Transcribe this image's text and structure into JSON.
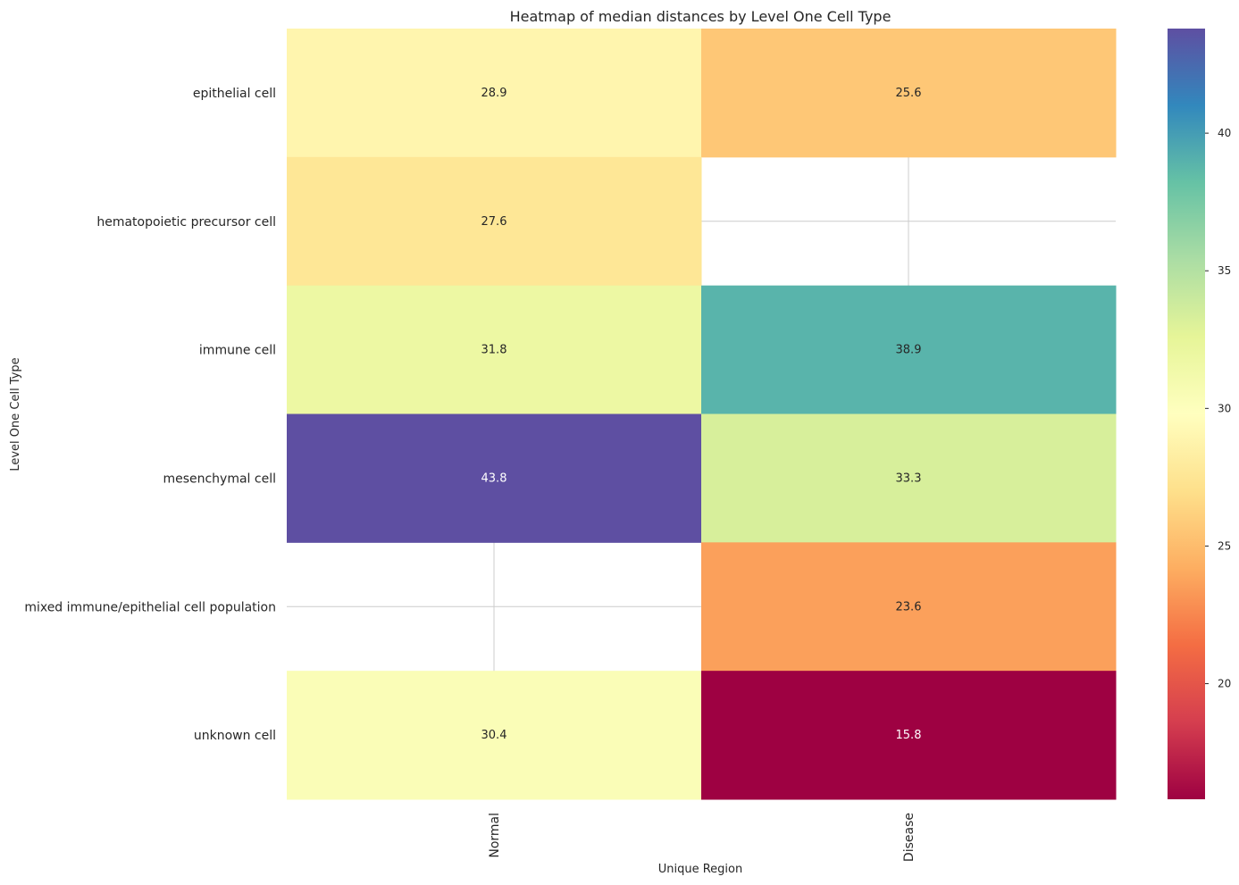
{
  "chart_data": {
    "type": "heatmap",
    "title": "Heatmap of median distances by Level One Cell Type",
    "xlabel": "Unique Region",
    "ylabel": "Level One Cell Type",
    "columns": [
      "Normal",
      "Disease"
    ],
    "rows": [
      "epithelial cell",
      "hematopoietic precursor cell",
      "immune cell",
      "mesenchymal cell",
      "mixed immune/epithelial cell population",
      "unknown cell"
    ],
    "values": [
      [
        28.9,
        25.6
      ],
      [
        27.6,
        null
      ],
      [
        31.8,
        38.9
      ],
      [
        43.8,
        33.3
      ],
      [
        null,
        23.6
      ],
      [
        30.4,
        15.8
      ]
    ],
    "colormap": "Spectral",
    "vmin": 15.8,
    "vmax": 43.8,
    "colorbar_ticks": [
      20,
      25,
      30,
      35,
      40
    ],
    "colorbar_tick_labels": [
      "20",
      "25",
      "30",
      "35",
      "40"
    ]
  }
}
